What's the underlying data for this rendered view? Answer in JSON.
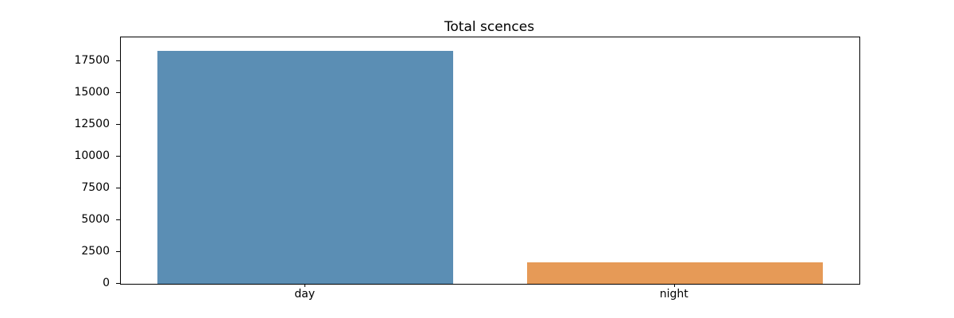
{
  "chart_data": {
    "type": "bar",
    "title": "Total scences",
    "categories": [
      "day",
      "night"
    ],
    "values": [
      18315,
      1670
    ],
    "colors": [
      "#5b8eb4",
      "#e69a57"
    ],
    "yticks": [
      0,
      2500,
      5000,
      7500,
      10000,
      12500,
      15000,
      17500
    ],
    "ylim": [
      0,
      19375
    ],
    "xlabel": "",
    "ylabel": "",
    "grid": false,
    "legend": false,
    "bar_width_fraction": 0.8,
    "axis_color": "#000000",
    "text_color": "#000000",
    "background_color": "#ffffff"
  }
}
